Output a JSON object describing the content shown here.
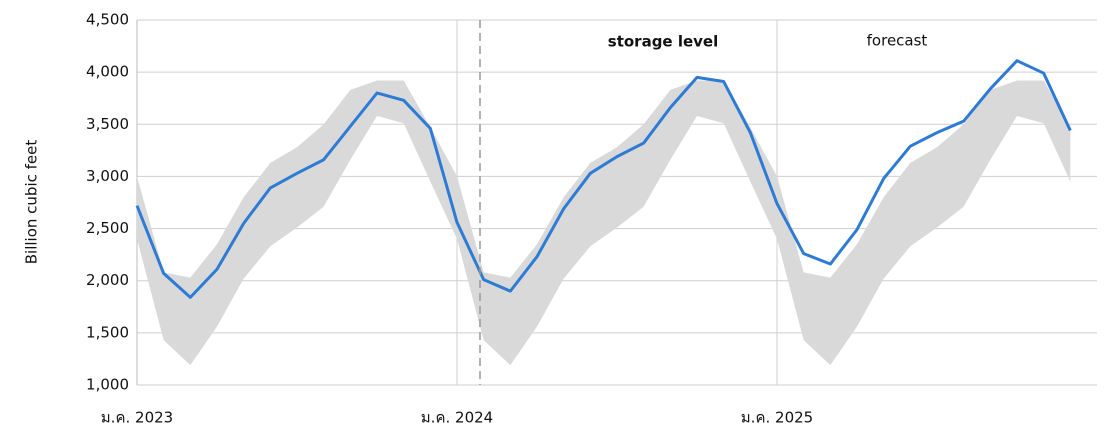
{
  "chart_data": {
    "type": "line",
    "y_label": "Billion cubic feet",
    "x": [
      "2023-01",
      "2023-02",
      "2023-03",
      "2023-04",
      "2023-05",
      "2023-06",
      "2023-07",
      "2023-08",
      "2023-09",
      "2023-10",
      "2023-11",
      "2023-12",
      "2024-01",
      "2024-02",
      "2024-03",
      "2024-04",
      "2024-05",
      "2024-06",
      "2024-07",
      "2024-08",
      "2024-09",
      "2024-10",
      "2024-11",
      "2024-12",
      "2025-01",
      "2025-02",
      "2025-03",
      "2025-04",
      "2025-05",
      "2025-06",
      "2025-07",
      "2025-08",
      "2025-09",
      "2025-10",
      "2025-11",
      "2025-12"
    ],
    "series": [
      {
        "name": "storage level",
        "color": "#2e7bd6",
        "values": [
          2720,
          2070,
          1840,
          2110,
          2550,
          2890,
          3030,
          3160,
          3480,
          3800,
          3730,
          3460,
          2560,
          2010,
          1900,
          2230,
          2690,
          3030,
          3190,
          3320,
          3660,
          3950,
          3910,
          3420,
          2740,
          2260,
          2160,
          2490,
          2980,
          3290,
          3420,
          3530,
          3840,
          4110,
          3990,
          3440
        ]
      }
    ],
    "band_color": "#d9d9d9",
    "band_upper": [
      3000,
      2080,
      2030,
      2350,
      2800,
      3130,
      3280,
      3500,
      3830,
      3920,
      3920,
      3470,
      3000,
      2080,
      2030,
      2350,
      2800,
      3130,
      3280,
      3500,
      3830,
      3920,
      3920,
      3470,
      3000,
      2080,
      2030,
      2350,
      2800,
      3130,
      3280,
      3500,
      3830,
      3920,
      3920,
      3470
    ],
    "band_lower": [
      2400,
      1430,
      1190,
      1560,
      2020,
      2330,
      2510,
      2710,
      3160,
      3580,
      3510,
      2950,
      2400,
      1430,
      1190,
      1560,
      2020,
      2330,
      2510,
      2710,
      3160,
      3580,
      3510,
      2950,
      2400,
      1430,
      1190,
      1560,
      2020,
      2330,
      2510,
      2710,
      3160,
      3580,
      3510,
      2950
    ],
    "annotations": [
      {
        "text": "forecast"
      }
    ],
    "xlim": [
      "2023-01",
      "2026-01"
    ],
    "xticks": [
      {
        "value": "2023-01",
        "label": "ม.ค. 2023"
      },
      {
        "value": "2024-01",
        "label": "ม.ค. 2024"
      },
      {
        "value": "2025-01",
        "label": "ม.ค. 2025"
      }
    ],
    "ylim": [
      1000,
      4500
    ],
    "yticks": [
      {
        "value": 1000,
        "label": "1,000"
      },
      {
        "value": 1500,
        "label": "1,500"
      },
      {
        "value": 2000,
        "label": "2,000"
      },
      {
        "value": 2500,
        "label": "2,500"
      },
      {
        "value": 3000,
        "label": "3,000"
      },
      {
        "value": 3500,
        "label": "3,500"
      },
      {
        "value": 4000,
        "label": "4,000"
      },
      {
        "value": 4500,
        "label": "4,500"
      }
    ],
    "grid": true
  }
}
